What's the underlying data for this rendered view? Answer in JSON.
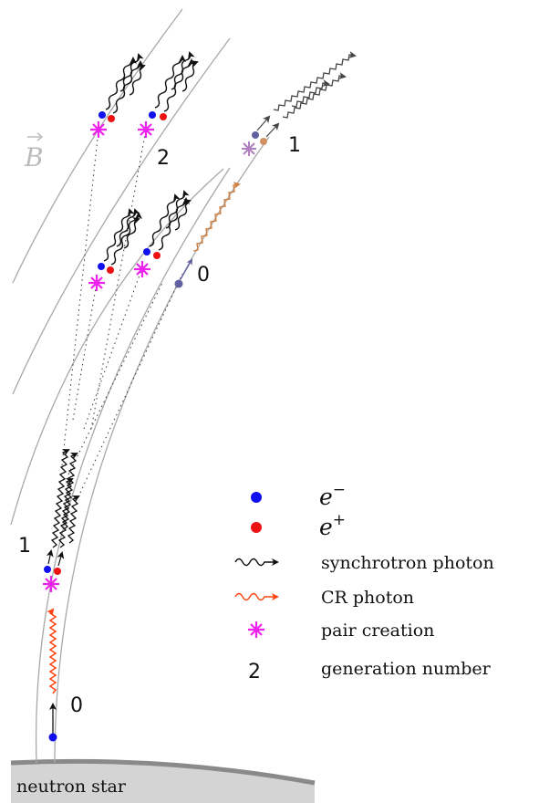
{
  "field_label": "B",
  "star_label": "neutron star",
  "generation_labels": {
    "left_0": "0",
    "left_1": "1",
    "left_2": "2",
    "right_0": "0",
    "right_1": "1"
  },
  "legend": {
    "electron": "e",
    "electron_sup": "−",
    "positron": "e",
    "positron_sup": "+",
    "synchrotron": "synchrotron photon",
    "cr": "CR photon",
    "pair": "pair creation",
    "generation_sample": "2",
    "generation": "generation number"
  },
  "colors": {
    "electron": "#1010ee",
    "positron": "#ee1111",
    "pair": "#ee22ee",
    "cr_photon": "#ff4411",
    "cr_photon_faded": "#e09060",
    "synchrotron": "#111111",
    "field_line": "#a8a8a8",
    "star_fill": "#d4d4d4",
    "star_edge": "#909090",
    "faded_particle": "#6060a0",
    "faded_pair": "#b080c0",
    "faded_positron": "#d09060"
  }
}
